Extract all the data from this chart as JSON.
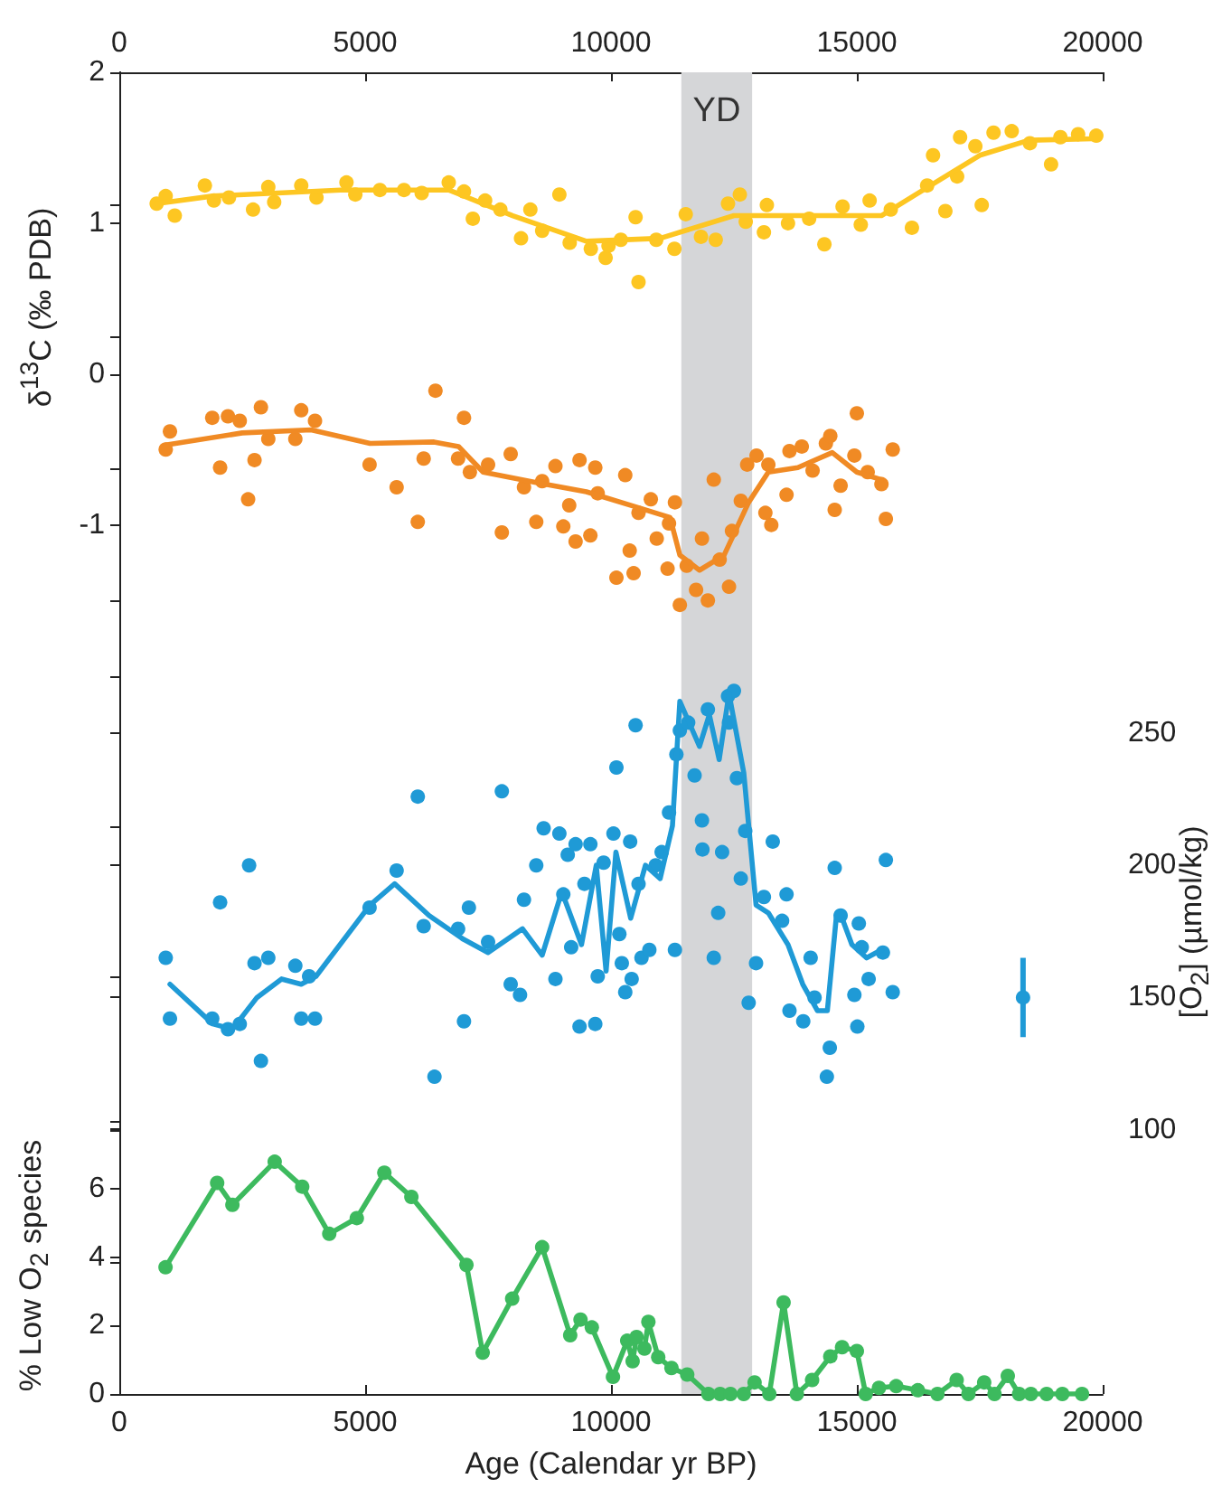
{
  "chart_data": {
    "type": "scatter",
    "xlabel": "Age (Calendar yr BP)",
    "ylabel": "δ$^{13}$C (‰ PDB)",
    "y2label": "[O$_{2}$] (µmol/kg)",
    "y3label": "% Low O$_{2}$ species",
    "xlim": [
      0,
      20000
    ],
    "xticks": [
      0,
      5000,
      10000,
      15000,
      20000
    ],
    "x2lim": [
      0,
      20000
    ],
    "x2ticks": [
      0,
      5000,
      10000,
      15000,
      20000
    ],
    "ylim": [
      -6.76,
      2
    ],
    "yticks": [
      {
        "value": -5,
        "label": null
      },
      {
        "value": -4,
        "label": null
      },
      {
        "value": -3,
        "label": null
      },
      {
        "value": -2,
        "label": null
      },
      -1,
      0,
      1,
      2
    ],
    "y2lim": [
      0,
      500
    ],
    "y2ticks": [
      {
        "value": 0,
        "label": null
      },
      {
        "value": 50,
        "label": null
      },
      100,
      150,
      200,
      250,
      {
        "value": 300,
        "label": null
      },
      {
        "value": 350,
        "label": null
      },
      {
        "value": 400,
        "label": null
      },
      {
        "value": 450,
        "label": null
      },
      {
        "value": 500,
        "label": null
      }
    ],
    "y3lim": [
      0,
      38.7
    ],
    "y3ticks": [
      0,
      2,
      4,
      6,
      {
        "value": 8,
        "label": null
      }
    ],
    "grid": false,
    "bands": [
      {
        "axis": "x",
        "from": 11430,
        "to": 12870,
        "label": "YD",
        "color": "#d5d6d8"
      }
    ],
    "series": [
      {
        "axis": "y",
        "color": "#fdc622",
        "marker": "circle",
        "x": [
          760,
          943,
          1128,
          1740,
          1924,
          2230,
          2720,
          3030,
          3150,
          3700,
          4010,
          4620,
          4800,
          5300,
          5790,
          6150,
          6700,
          7010,
          7190,
          7440,
          7750,
          8170,
          8360,
          8600,
          8950,
          9160,
          9590,
          9890,
          9950,
          10200,
          10500,
          10560,
          10920,
          11290,
          11520,
          11830,
          12130,
          12380,
          12620,
          12740,
          13110,
          13170,
          13600,
          14030,
          14340,
          14710,
          15080,
          15260,
          15690,
          16120,
          16430,
          16550,
          16800,
          17040,
          17100,
          17410,
          17540,
          17780,
          18150,
          18520,
          18950,
          19140,
          19500,
          19870
        ],
        "values": [
          1.13,
          1.18,
          1.05,
          1.25,
          1.15,
          1.17,
          1.09,
          1.24,
          1.14,
          1.25,
          1.17,
          1.27,
          1.19,
          1.22,
          1.22,
          1.2,
          1.27,
          1.21,
          1.03,
          1.15,
          1.09,
          0.9,
          1.09,
          0.95,
          1.19,
          0.87,
          0.83,
          0.77,
          0.85,
          0.89,
          1.04,
          0.61,
          0.89,
          0.83,
          1.06,
          0.91,
          0.89,
          1.13,
          1.19,
          1.01,
          0.94,
          1.12,
          1.0,
          1.03,
          0.86,
          1.11,
          0.99,
          1.15,
          1.09,
          0.97,
          1.25,
          1.45,
          1.08,
          1.31,
          1.57,
          1.51,
          1.12,
          1.6,
          1.61,
          1.53,
          1.39,
          1.57,
          1.59,
          1.58
        ]
      },
      {
        "type": "line",
        "axis": "y",
        "color": "#fdc622",
        "marker": "none",
        "line_style": "solid",
        "x": [
          760,
          1900,
          4500,
          6700,
          8000,
          9500,
          11000,
          12500,
          13500,
          14500,
          15500,
          16500,
          17500,
          18500,
          19800
        ],
        "values": [
          1.13,
          1.18,
          1.22,
          1.22,
          1.05,
          0.88,
          0.9,
          1.05,
          1.05,
          1.05,
          1.05,
          1.25,
          1.45,
          1.55,
          1.56
        ]
      },
      {
        "axis": "y",
        "color": "#f08a24",
        "marker": "circle",
        "x": [
          944,
          1030,
          1890,
          2050,
          2210,
          2450,
          2620,
          2750,
          2880,
          3030,
          3580,
          3700,
          3980,
          5090,
          5640,
          6070,
          6190,
          6430,
          6890,
          7010,
          7130,
          7500,
          7780,
          7960,
          8230,
          8480,
          8600,
          8870,
          9030,
          9150,
          9280,
          9360,
          9580,
          9680,
          9730,
          10110,
          10290,
          10380,
          10460,
          10560,
          10810,
          10930,
          11150,
          11180,
          11300,
          11400,
          11540,
          11730,
          11850,
          11970,
          12090,
          12210,
          12400,
          12460,
          12640,
          12770,
          12960,
          13140,
          13200,
          13260,
          13570,
          13630,
          13880,
          14100,
          14370,
          14460,
          14550,
          14670,
          14950,
          15000,
          15220,
          15500,
          15590,
          15730
        ],
        "values": [
          -0.5,
          -0.38,
          -0.29,
          -0.62,
          -0.28,
          -0.31,
          -0.83,
          -0.57,
          -0.22,
          -0.43,
          -0.43,
          -0.24,
          -0.31,
          -0.6,
          -0.75,
          -0.98,
          -0.56,
          -0.11,
          -0.56,
          -0.29,
          -0.65,
          -0.6,
          -1.05,
          -0.53,
          -0.75,
          -0.98,
          -0.71,
          -0.61,
          -1.01,
          -0.87,
          -1.11,
          -0.57,
          -1.07,
          -0.62,
          -0.79,
          -1.35,
          -0.67,
          -1.17,
          -1.32,
          -0.92,
          -0.83,
          -1.09,
          -1.29,
          -0.99,
          -0.85,
          -1.53,
          -1.27,
          -1.43,
          -1.09,
          -1.5,
          -0.7,
          -1.23,
          -1.41,
          -1.04,
          -0.84,
          -0.6,
          -0.54,
          -0.92,
          -0.6,
          -1.0,
          -0.8,
          -0.51,
          -0.48,
          -0.64,
          -0.46,
          -0.41,
          -0.9,
          -0.74,
          -0.54,
          -0.26,
          -0.65,
          -0.73,
          -0.96,
          -0.5
        ]
      },
      {
        "type": "line",
        "axis": "y",
        "color": "#f08a24",
        "marker": "none",
        "line_style": "solid",
        "x": [
          944,
          2500,
          3900,
          5100,
          6400,
          6900,
          7400,
          8500,
          9500,
          10500,
          11200,
          11400,
          11800,
          12300,
          12800,
          13200,
          13800,
          14500,
          15000,
          15500
        ],
        "values": [
          -0.47,
          -0.39,
          -0.37,
          -0.46,
          -0.45,
          -0.48,
          -0.65,
          -0.72,
          -0.78,
          -0.88,
          -0.95,
          -1.2,
          -1.3,
          -1.2,
          -0.85,
          -0.65,
          -0.62,
          -0.52,
          -0.65,
          -0.7
        ]
      },
      {
        "axis": "y2",
        "color": "#1f9ad6",
        "marker": "circle",
        "x": [
          944,
          1030,
          1890,
          2050,
          2210,
          2450,
          2640,
          2750,
          2880,
          3030,
          3580,
          3700,
          3860,
          3980,
          5090,
          5640,
          6070,
          6190,
          6410,
          6890,
          7010,
          7110,
          7500,
          7780,
          7960,
          8150,
          8230,
          8480,
          8630,
          8870,
          8950,
          9030,
          9120,
          9190,
          9280,
          9360,
          9460,
          9580,
          9680,
          9730,
          9850,
          10050,
          10110,
          10170,
          10220,
          10290,
          10390,
          10420,
          10500,
          10560,
          10620,
          10780,
          10910,
          11030,
          11180,
          11300,
          11330,
          11400,
          11570,
          11700,
          11850,
          11860,
          11970,
          12090,
          12180,
          12260,
          12380,
          12400,
          12500,
          12560,
          12640,
          12730,
          12800,
          12950,
          13110,
          13290,
          13480,
          13570,
          13630,
          13910,
          14060,
          14140,
          14390,
          14450,
          14550,
          14670,
          14950,
          15010,
          15040,
          15100,
          15240,
          15530,
          15590,
          15730
        ],
        "values": [
          165,
          142,
          142,
          186,
          138,
          140,
          200,
          163,
          126,
          165,
          162,
          142,
          158,
          142,
          184,
          198,
          226,
          177,
          120,
          176,
          141,
          184,
          171,
          228,
          155,
          151,
          187,
          200,
          214,
          157,
          212,
          189,
          204,
          169,
          208,
          139,
          193,
          208,
          140,
          158,
          201,
          212,
          237,
          174,
          163,
          152,
          209,
          157,
          253,
          193,
          165,
          168,
          200,
          205,
          220,
          168,
          242,
          251,
          254,
          234,
          217,
          206,
          259,
          165,
          182,
          205,
          264,
          254,
          266,
          233,
          195,
          213,
          148,
          163,
          188,
          209,
          179,
          189,
          145,
          141,
          165,
          150,
          120,
          131,
          199,
          181,
          151,
          139,
          178,
          169,
          157,
          167,
          202,
          152
        ]
      },
      {
        "type": "line",
        "axis": "y2",
        "color": "#1f9ad6",
        "marker": "none",
        "line_style": "solid",
        "x": [
          1030,
          1900,
          2300,
          2800,
          3300,
          3700,
          4000,
          5100,
          5600,
          6300,
          7000,
          7500,
          8200,
          8600,
          9000,
          9400,
          9700,
          9900,
          10100,
          10400,
          10700,
          11000,
          11250,
          11400,
          11800,
          12000,
          12200,
          12400,
          12700,
          12950,
          13200,
          13600,
          13900,
          14200,
          14400,
          14580,
          14700,
          14900,
          15200,
          15500
        ],
        "values": [
          155,
          140,
          138,
          150,
          157,
          155,
          158,
          185,
          193,
          181,
          172,
          167,
          176,
          166,
          190,
          170,
          200,
          160,
          205,
          180,
          200,
          195,
          215,
          262,
          245,
          257,
          240,
          265,
          235,
          185,
          182,
          170,
          155,
          145,
          145,
          180,
          180,
          170,
          165,
          168
        ]
      },
      {
        "axis": "y2",
        "color": "#1f9ad6",
        "marker": "circle",
        "x": [
          18380
        ],
        "values": [
          150
        ],
        "errors": [
          15
        ]
      },
      {
        "type": "line",
        "axis": "y3",
        "color": "#3dba5e",
        "marker": "circle",
        "line_style": "solid",
        "x": [
          940,
          1990,
          2300,
          3160,
          3720,
          4270,
          4830,
          5390,
          5940,
          7060,
          7390,
          7990,
          8600,
          9170,
          9380,
          9610,
          10040,
          10330,
          10440,
          10520,
          10680,
          10760,
          10960,
          11230,
          11550,
          11980,
          12220,
          12430,
          12700,
          12920,
          13220,
          13510,
          13780,
          14090,
          14460,
          14700,
          15000,
          15180,
          15450,
          15800,
          16240,
          16640,
          17030,
          17270,
          17590,
          17800,
          18070,
          18300,
          18540,
          18860,
          19180,
          19580
        ],
        "values": [
          3.71,
          6.18,
          5.54,
          6.8,
          6.07,
          4.69,
          5.15,
          6.48,
          5.77,
          3.78,
          1.21,
          2.79,
          4.3,
          1.72,
          2.18,
          1.95,
          0.5,
          1.56,
          0.96,
          1.67,
          1.33,
          2.11,
          1.08,
          0.76,
          0.57,
          0,
          0,
          0,
          0,
          0.34,
          0,
          2.68,
          0,
          0.41,
          1.1,
          1.37,
          1.26,
          0,
          0.18,
          0.23,
          0.11,
          0,
          0.41,
          0,
          0.34,
          0,
          0.53,
          0,
          0,
          0,
          0,
          0
        ]
      }
    ]
  }
}
